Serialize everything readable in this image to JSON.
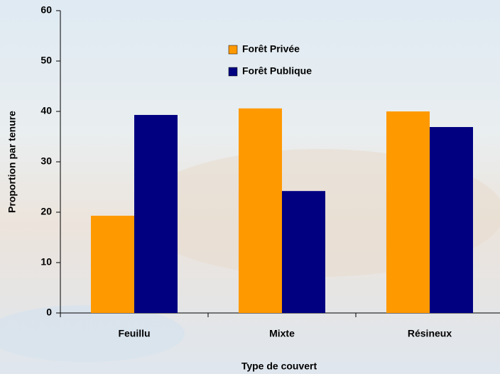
{
  "chart_data": {
    "type": "bar",
    "x_label": "Type de couvert",
    "y_label": "Proportion par tenure",
    "categories": [
      "Feuillu",
      "Mixte",
      "Résineux"
    ],
    "series": [
      {
        "name": "Forêt Privée",
        "color": "#ff9900",
        "values": [
          19.3,
          40.6,
          40.0
        ]
      },
      {
        "name": "Forêt Publique",
        "color": "#000080",
        "values": [
          39.3,
          24.2,
          36.9
        ]
      }
    ],
    "ylim": [
      0,
      60
    ],
    "yticks": [
      0,
      10,
      20,
      30,
      40,
      50,
      60
    ]
  }
}
